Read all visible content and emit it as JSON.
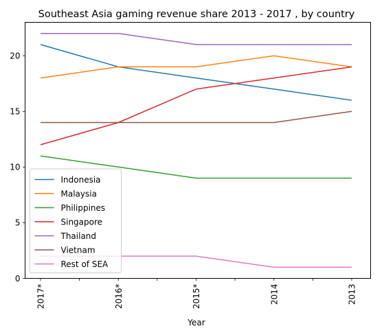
{
  "chart_data": {
    "type": "line",
    "title": "Southeast Asia gaming revenue share 2013 - 2017 , by country",
    "xlabel": "Year",
    "ylabel": "",
    "categories": [
      "2017*",
      "2016*",
      "2015*",
      "2014",
      "2013"
    ],
    "yticks": [
      "0",
      "5",
      "10",
      "15",
      "20"
    ],
    "ylim": [
      0,
      23
    ],
    "grid": false,
    "legend_position": "lower-left",
    "series": [
      {
        "name": "Indonesia",
        "color": "#1f77b4",
        "values": [
          21,
          19,
          18,
          17,
          16
        ]
      },
      {
        "name": "Malaysia",
        "color": "#ff7f0e",
        "values": [
          18,
          19,
          19,
          20,
          19
        ]
      },
      {
        "name": "Philippines",
        "color": "#2ca02c",
        "values": [
          11,
          10,
          9,
          9,
          9
        ]
      },
      {
        "name": "Singapore",
        "color": "#d62728",
        "values": [
          12,
          14,
          17,
          18,
          19
        ]
      },
      {
        "name": "Thailand",
        "color": "#9467bd",
        "values": [
          22,
          22,
          21,
          21,
          21
        ]
      },
      {
        "name": "Vietnam",
        "color": "#8c564b",
        "values": [
          14,
          14,
          14,
          14,
          15
        ]
      },
      {
        "name": "Rest of SEA",
        "color": "#e377c2",
        "values": [
          2,
          2,
          2,
          1,
          1
        ]
      }
    ]
  }
}
